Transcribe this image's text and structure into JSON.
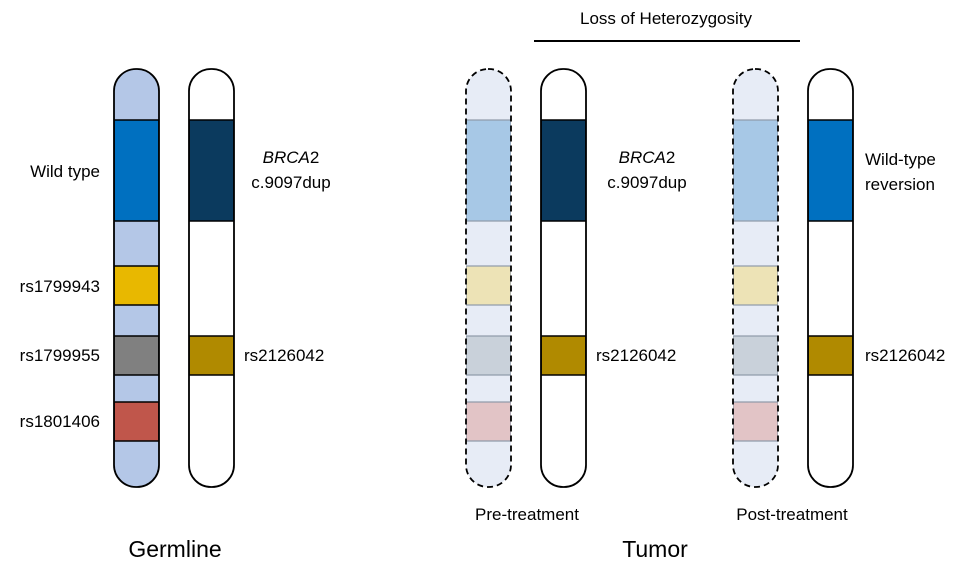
{
  "header": {
    "loh_label": "Loss of Heterozygosity"
  },
  "germline": {
    "caption": "Germline",
    "left_labels": {
      "wild_type": "Wild type",
      "snp1": "rs1799943",
      "snp2": "rs1799955",
      "snp3": "rs1801406"
    },
    "right_labels": {
      "gene": "BRCA",
      "gene_suffix": "2",
      "mutation": "c.9097dup",
      "snp": "rs2126042"
    }
  },
  "tumor": {
    "caption": "Tumor",
    "pre_treatment": {
      "caption": "Pre-treatment",
      "gene": "BRCA",
      "gene_suffix": "2",
      "mutation": "c.9097dup",
      "snp": "rs2126042"
    },
    "post_treatment": {
      "caption": "Post-treatment",
      "reversion_line1": "Wild-type",
      "reversion_line2": "reversion",
      "snp": "rs2126042"
    }
  },
  "colors": {
    "chromosome_base": "#b4c7e7",
    "wild_type_blue": "#0070c0",
    "mutant_navy": "#0b3a5e",
    "snp_yellow": "#e8b800",
    "snp_gray": "#808080",
    "snp_red": "#c0564b",
    "snp_olive": "#b08a00",
    "faded_base": "#e7ecf6",
    "faded_blue": "#a7c8e6",
    "faded_yellow": "#ede3b6",
    "faded_gray": "#c9d1da",
    "faded_red": "#e2c4c6"
  }
}
